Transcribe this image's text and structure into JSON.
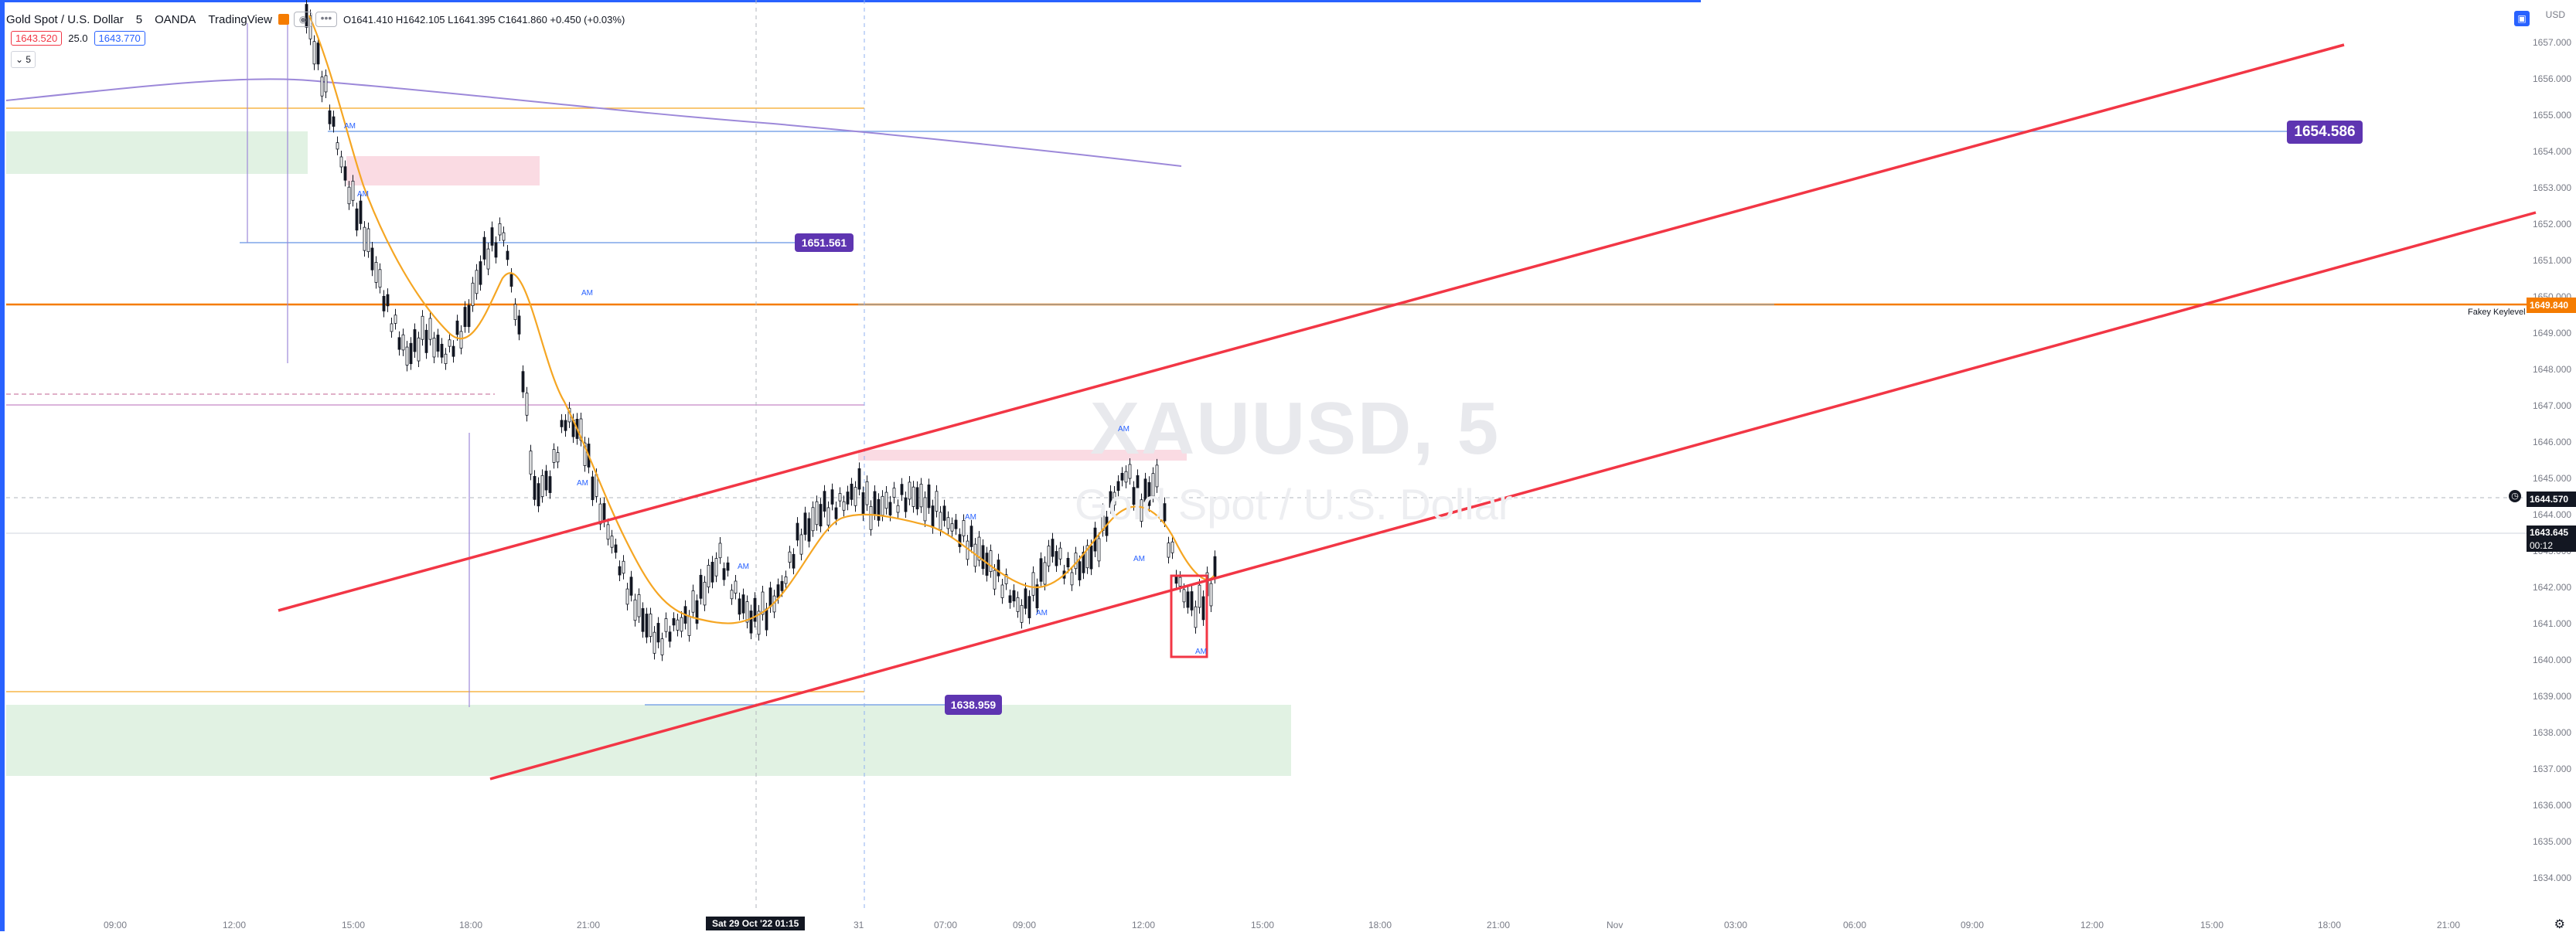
{
  "header": {
    "symbol": "Gold Spot / U.S. Dollar",
    "interval": "5",
    "broker": "OANDA",
    "source": "TradingView",
    "ohlc": "O1641.410 H1642.105 L1641.395 C1641.860 +0.450 (+0.03%)"
  },
  "price_boxes": {
    "sell": "1643.520",
    "spread": "25.0",
    "buy": "1643.770"
  },
  "interval_indicator": "5",
  "currency": "USD",
  "watermark": {
    "ticker": "XAUUSD, 5",
    "name": "Gold Spot / U.S. Dollar"
  },
  "price_scale": [
    "1657.000",
    "1656.000",
    "1655.000",
    "1654.000",
    "1653.000",
    "1652.000",
    "1651.000",
    "1650.000",
    "1649.000",
    "1648.000",
    "1647.000",
    "1646.000",
    "1645.000",
    "1644.000",
    "1643.000",
    "1642.000",
    "1641.000",
    "1640.000",
    "1639.000",
    "1638.000",
    "1637.000",
    "1636.000",
    "1635.000",
    "1634.000"
  ],
  "time_scale": [
    "09:00",
    "12:00",
    "15:00",
    "18:00",
    "21:00",
    "31",
    "07:00",
    "09:00",
    "12:00",
    "15:00",
    "18:00",
    "21:00",
    "Nov",
    "03:00",
    "06:00",
    "09:00",
    "12:00",
    "15:00",
    "18:00",
    "21:00"
  ],
  "crosshair_time": "Sat 29 Oct '22  01:15",
  "badges": {
    "level_1654": "1654.586",
    "level_1651": "1651.561",
    "level_1638": "1638.959"
  },
  "axis_labels": {
    "keylevel_value": "1649.840",
    "dashed_value": "1644.570",
    "last_price": "1643.645",
    "countdown": "00:12"
  },
  "keylevel_text": "Fakey Keylevel",
  "markers": [
    "AM",
    "AM",
    "AM",
    "AM",
    "AM",
    "AM",
    "AM",
    "AM",
    "AM",
    "AM"
  ],
  "colors": {
    "trendline": "#f23645",
    "ma": "#f5a623",
    "ma_long": "#9c88d9",
    "zone_green": "#e1f2e3",
    "zone_pink": "#fadbe3",
    "badge": "#5e35b1",
    "accent": "#2962ff"
  }
}
